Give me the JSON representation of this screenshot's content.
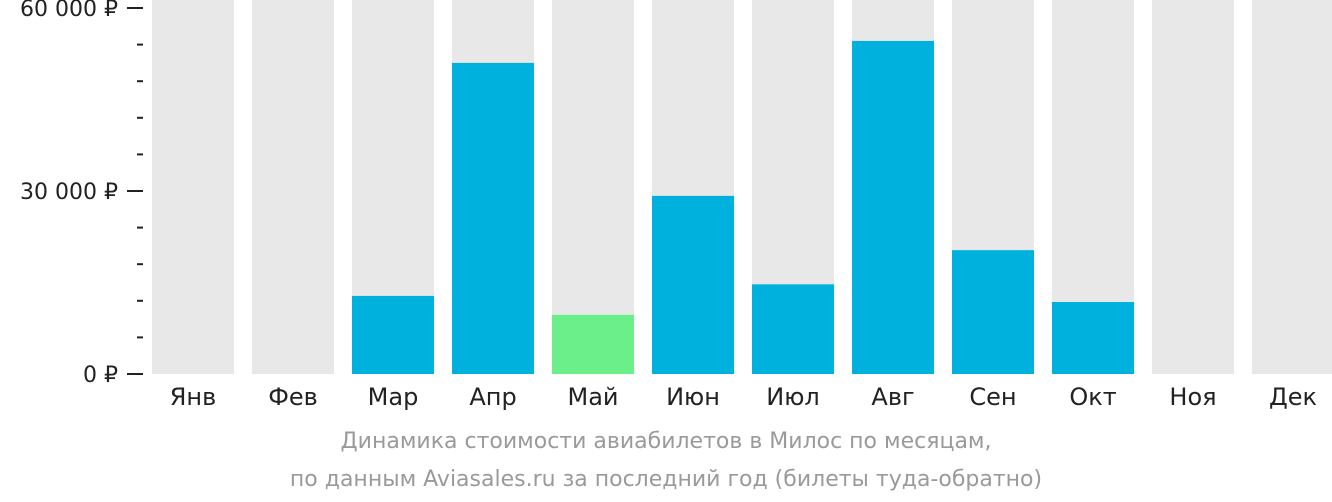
{
  "chart_data": {
    "type": "bar",
    "categories": [
      "Янв",
      "Фев",
      "Мар",
      "Апр",
      "Май",
      "Июн",
      "Июл",
      "Авг",
      "Сен",
      "Окт",
      "Ноя",
      "Дек"
    ],
    "values": [
      null,
      null,
      12800,
      51000,
      9700,
      29200,
      14700,
      54600,
      20300,
      11800,
      null,
      null
    ],
    "highlight_category": "Май",
    "ylim": [
      0,
      60000
    ],
    "y_ticks": [
      {
        "value": 0,
        "label": "0 ₽"
      },
      {
        "value": 30000,
        "label": "30 000 ₽"
      },
      {
        "value": 60000,
        "label": "60 000 ₽"
      }
    ],
    "y_minor_tick_step": 6000,
    "title": "",
    "xlabel": "",
    "ylabel": "",
    "grid": false,
    "legend": "none"
  },
  "caption": {
    "line1": "Динамика стоимости авиабилетов в Милос по месяцам,",
    "line2": "по данным Aviasales.ru за последний год (билеты туда-обратно)"
  },
  "colors": {
    "bar": "#00b1dd",
    "bar_highlight": "#6bef8a",
    "bar_background": "#e8e8e8",
    "axis": "#222222",
    "caption": "#9a9a9a"
  }
}
